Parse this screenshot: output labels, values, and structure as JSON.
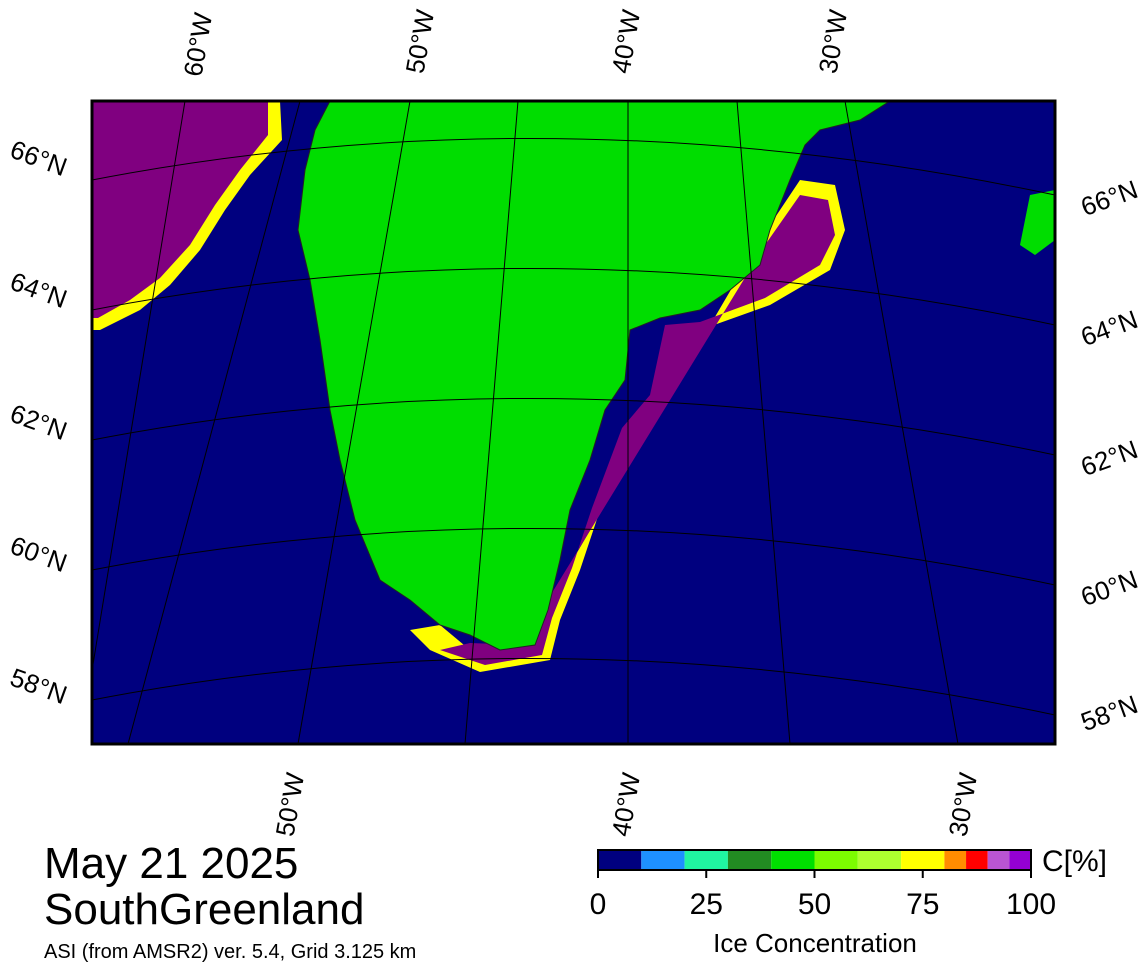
{
  "map": {
    "title": "May 21 2025",
    "region": "SouthGreenland",
    "note": "ASI (from AMSR2) ver. 5.4,  Grid 3.125 km",
    "lat_labels_left": [
      "66°N",
      "64°N",
      "62°N",
      "60°N",
      "58°N"
    ],
    "lat_labels_right": [
      "66°N",
      "64°N",
      "62°N",
      "60°N",
      "58°N"
    ],
    "lon_labels_top": [
      "60°W",
      "50°W",
      "40°W",
      "30°W"
    ],
    "lon_labels_bottom": [
      "50°W",
      "40°W",
      "30°W"
    ]
  },
  "colorbar": {
    "label": "Ice Concentration",
    "unit": "C[%]",
    "range": [
      0,
      100
    ],
    "ticks": [
      0,
      25,
      50,
      75,
      100
    ],
    "bounds": [
      0,
      10,
      20,
      30,
      40,
      50,
      60,
      70,
      80,
      85,
      90,
      95,
      100
    ],
    "colors": [
      "#00007f",
      "#1e90ff",
      "#20f5a0",
      "#228b22",
      "#00e000",
      "#7cfc00",
      "#adff2f",
      "#ffff00",
      "#ff8c00",
      "#ff0000",
      "#ba55d3",
      "#9400d3"
    ]
  }
}
